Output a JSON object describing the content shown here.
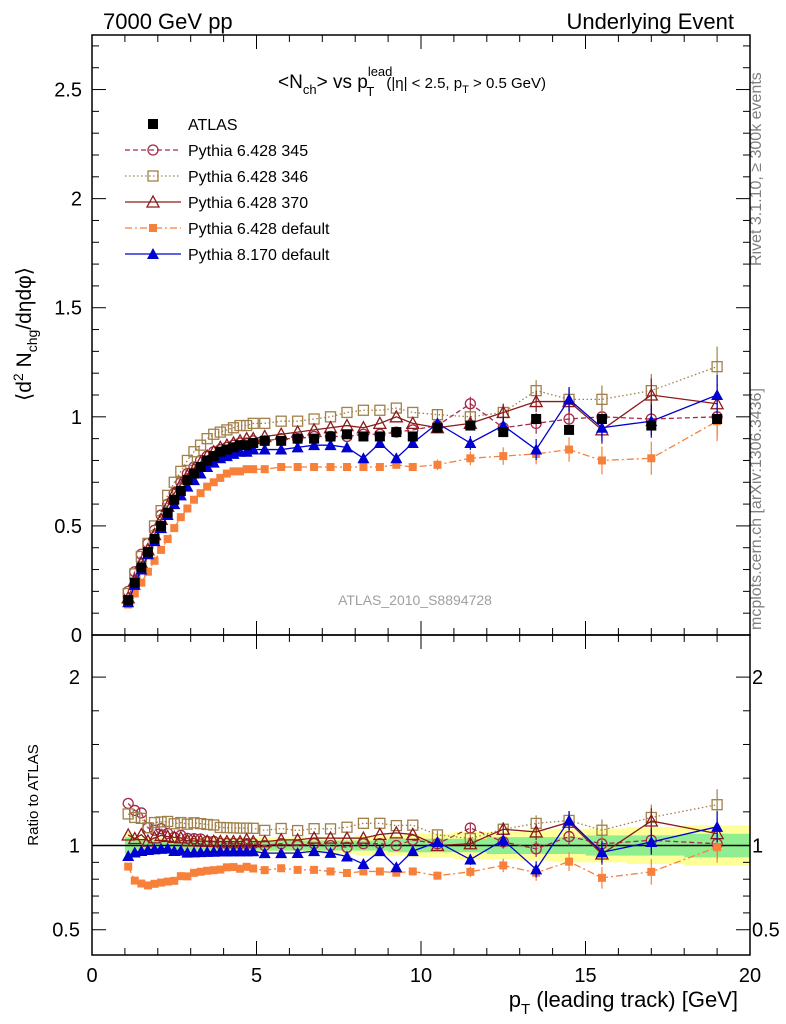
{
  "header": {
    "left": "7000 GeV pp",
    "right": "Underlying Event"
  },
  "side_labels": {
    "rivet": "Rivet 3.1.10, ≥ 300k events",
    "mcplots": "mcplots.cern.ch [arXiv:1306.3436]"
  },
  "analysis_id": "ATLAS_2010_S8894728",
  "chart_data": [
    {
      "type": "scatter",
      "panel": "main",
      "title": "<Nch> vs pT lead (|η| < 2.5, pT > 0.5 GeV)",
      "title_parts": {
        "main": "<N",
        "sub_ch": "ch",
        "mid": "> vs p",
        "sub_t": "T",
        "sup_lead": "lead",
        "cut": "(|η| < 2.5, p",
        "cut_sub": "T",
        "cut_end": " > 0.5 GeV)"
      },
      "ylabel_parts": {
        "open": "⟨d",
        "sup": "2",
        "mid": " N",
        "sub": "chg",
        "end": "/dηdφ⟩"
      },
      "xlim": [
        0,
        20
      ],
      "ylim": [
        0,
        2.75
      ],
      "yticks": [
        0,
        0.5,
        1,
        1.5,
        2,
        2.5
      ],
      "yticklabels": [
        "0",
        "0.5",
        "1",
        "1.5",
        "2",
        "2.5"
      ],
      "legend_position": "top-left",
      "x": [
        1.1,
        1.3,
        1.5,
        1.7,
        1.9,
        2.1,
        2.3,
        2.5,
        2.7,
        2.9,
        3.1,
        3.3,
        3.5,
        3.7,
        3.9,
        4.1,
        4.3,
        4.5,
        4.7,
        4.9,
        5.25,
        5.75,
        6.25,
        6.75,
        7.25,
        7.75,
        8.25,
        8.75,
        9.25,
        9.75,
        10.5,
        11.5,
        12.5,
        13.5,
        14.5,
        15.5,
        17,
        19
      ],
      "series": [
        {
          "name": "ATLAS",
          "style": "data",
          "color": "#000000",
          "values": [
            0.16,
            0.24,
            0.31,
            0.38,
            0.44,
            0.5,
            0.56,
            0.62,
            0.66,
            0.71,
            0.74,
            0.77,
            0.8,
            0.82,
            0.84,
            0.85,
            0.86,
            0.87,
            0.87,
            0.88,
            0.89,
            0.89,
            0.9,
            0.9,
            0.91,
            0.92,
            0.91,
            0.91,
            0.93,
            0.91,
            0.95,
            0.96,
            0.93,
            0.99,
            0.94,
            0.99,
            0.96,
            0.99
          ]
        },
        {
          "name": "Pythia 6.428 345",
          "style": "open-circle-dashed",
          "color": "#a52a4a",
          "values": [
            0.2,
            0.29,
            0.37,
            0.42,
            0.48,
            0.55,
            0.6,
            0.65,
            0.7,
            0.74,
            0.77,
            0.8,
            0.82,
            0.84,
            0.85,
            0.86,
            0.87,
            0.88,
            0.88,
            0.89,
            0.89,
            0.9,
            0.9,
            0.91,
            0.91,
            0.91,
            0.92,
            0.92,
            0.93,
            0.94,
            0.96,
            1.06,
            0.95,
            0.97,
            0.99,
            1.0,
            0.99,
            1.0
          ]
        },
        {
          "name": "Pythia 6.428 346",
          "style": "open-square-dotted",
          "color": "#a0804a",
          "values": [
            0.19,
            0.28,
            0.36,
            0.42,
            0.5,
            0.57,
            0.64,
            0.7,
            0.75,
            0.8,
            0.84,
            0.87,
            0.9,
            0.92,
            0.93,
            0.94,
            0.95,
            0.96,
            0.96,
            0.97,
            0.97,
            0.98,
            0.98,
            0.99,
            1.0,
            1.02,
            1.03,
            1.03,
            1.04,
            1.02,
            1.01,
            1.0,
            1.02,
            1.12,
            1.08,
            1.08,
            1.12,
            1.23
          ]
        },
        {
          "name": "Pythia 6.428 370",
          "style": "open-triangle-solid",
          "color": "#8b1a1a",
          "values": [
            0.17,
            0.25,
            0.33,
            0.39,
            0.46,
            0.53,
            0.59,
            0.65,
            0.69,
            0.73,
            0.76,
            0.79,
            0.82,
            0.84,
            0.86,
            0.87,
            0.88,
            0.89,
            0.9,
            0.9,
            0.91,
            0.92,
            0.93,
            0.94,
            0.95,
            0.96,
            0.95,
            0.97,
            1.0,
            0.97,
            0.95,
            0.97,
            1.02,
            1.07,
            1.07,
            0.94,
            1.1,
            1.06
          ]
        },
        {
          "name": "Pythia 6.428 default",
          "style": "filled-square-dashdot",
          "color": "#f7813a",
          "values": [
            0.14,
            0.19,
            0.24,
            0.29,
            0.34,
            0.39,
            0.44,
            0.49,
            0.54,
            0.58,
            0.62,
            0.65,
            0.68,
            0.7,
            0.72,
            0.74,
            0.75,
            0.75,
            0.76,
            0.76,
            0.76,
            0.77,
            0.77,
            0.77,
            0.77,
            0.77,
            0.77,
            0.77,
            0.78,
            0.77,
            0.78,
            0.81,
            0.82,
            0.83,
            0.85,
            0.8,
            0.81,
            0.98
          ]
        },
        {
          "name": "Pythia 8.170 default",
          "style": "filled-triangle-solid",
          "color": "#0000d0",
          "values": [
            0.15,
            0.23,
            0.3,
            0.37,
            0.43,
            0.49,
            0.55,
            0.6,
            0.64,
            0.68,
            0.71,
            0.74,
            0.77,
            0.79,
            0.81,
            0.82,
            0.83,
            0.84,
            0.84,
            0.85,
            0.85,
            0.85,
            0.86,
            0.87,
            0.87,
            0.86,
            0.81,
            0.88,
            0.81,
            0.88,
            0.97,
            0.88,
            0.96,
            0.85,
            1.08,
            0.95,
            0.98,
            1.1
          ]
        }
      ]
    },
    {
      "type": "scatter",
      "panel": "ratio",
      "ylabel": "Ratio to ATLAS",
      "xlabel_parts": {
        "p": "p",
        "sub": "T",
        "rest": " (leading track) [GeV]"
      },
      "xlim": [
        0,
        20
      ],
      "ylim": [
        0.35,
        2.25
      ],
      "xticks": [
        0,
        5,
        10,
        15,
        20
      ],
      "xticklabels": [
        "0",
        "5",
        "10",
        "15",
        "20"
      ],
      "yticks": [
        0.5,
        1,
        2
      ],
      "yticklabels": [
        "0.5",
        "1",
        "2"
      ],
      "band_inner_pct": [
        5,
        4,
        3,
        3,
        3,
        3,
        3,
        3,
        3,
        3,
        3,
        3,
        3,
        3,
        3,
        3,
        3,
        3,
        3,
        3,
        3,
        3,
        3,
        3,
        3,
        3,
        3,
        3,
        4,
        4,
        4,
        4,
        5,
        5,
        5,
        6,
        6,
        7
      ],
      "band_outer_pct": [
        8,
        6,
        5,
        5,
        5,
        5,
        5,
        5,
        5,
        5,
        5,
        5,
        5,
        5,
        5,
        5,
        5,
        5,
        5,
        5,
        5,
        5,
        5,
        5,
        5,
        5,
        6,
        6,
        6,
        7,
        7,
        8,
        8,
        9,
        10,
        10,
        11,
        12
      ]
    }
  ]
}
